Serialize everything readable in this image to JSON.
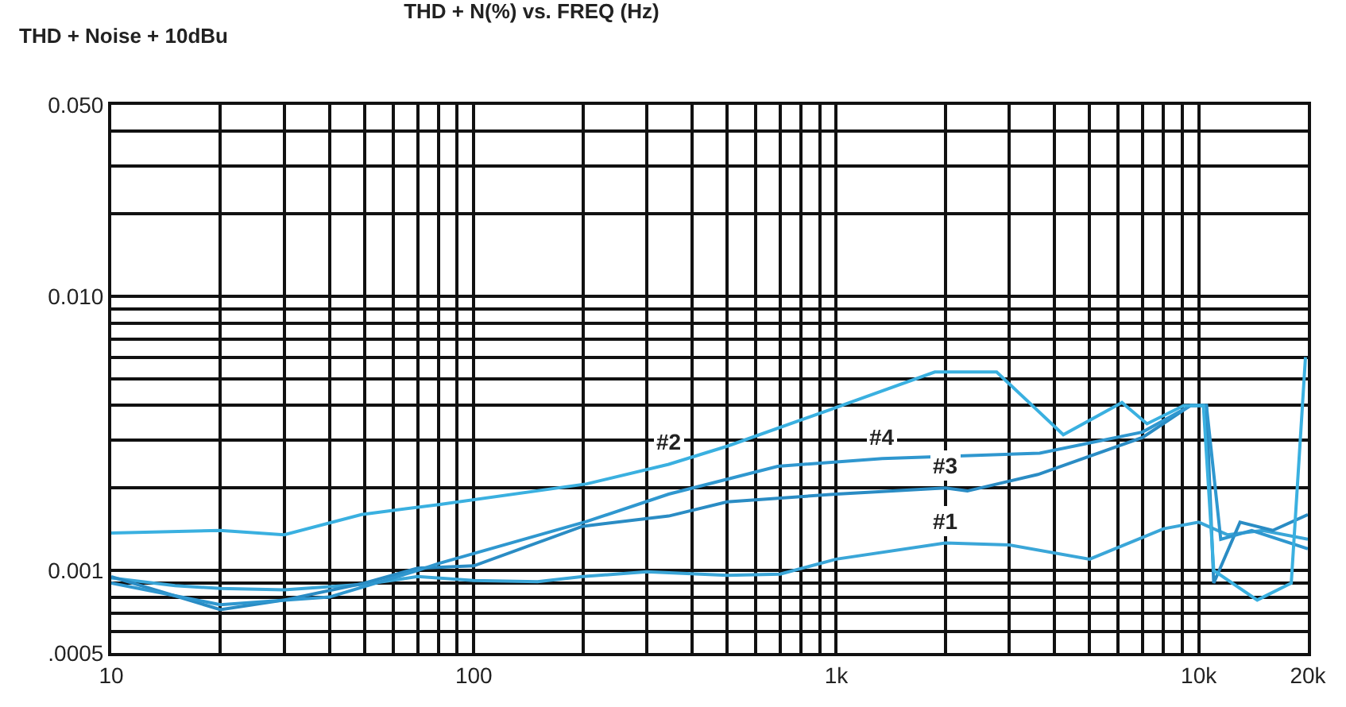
{
  "chart_data": {
    "type": "line",
    "title": "THD + N(%) vs. FREQ (Hz)",
    "subtitle": "THD + Noise + 10dBu",
    "log": "xy",
    "grid": true,
    "line_style": "solid",
    "marker": "none",
    "xlim": [
      10,
      20000
    ],
    "ylim": [
      0.0005,
      0.05
    ],
    "xticks": [
      10,
      {
        "value": 20,
        "label": null
      },
      {
        "value": 30,
        "label": null
      },
      {
        "value": 40,
        "label": null
      },
      {
        "value": 50,
        "label": null
      },
      {
        "value": 60,
        "label": null
      },
      {
        "value": 70,
        "label": null
      },
      {
        "value": 80,
        "label": null
      },
      {
        "value": 90,
        "label": null
      },
      100,
      {
        "value": 200,
        "label": null
      },
      {
        "value": 300,
        "label": null
      },
      {
        "value": 400,
        "label": null
      },
      {
        "value": 500,
        "label": null
      },
      {
        "value": 600,
        "label": null
      },
      {
        "value": 700,
        "label": null
      },
      {
        "value": 800,
        "label": null
      },
      {
        "value": 900,
        "label": null
      },
      {
        "value": 1000,
        "label": "1k"
      },
      {
        "value": 2000,
        "label": null
      },
      {
        "value": 3000,
        "label": null
      },
      {
        "value": 4000,
        "label": null
      },
      {
        "value": 5000,
        "label": null
      },
      {
        "value": 6000,
        "label": null
      },
      {
        "value": 7000,
        "label": null
      },
      {
        "value": 8000,
        "label": null
      },
      {
        "value": 9000,
        "label": null
      },
      {
        "value": 10000,
        "label": "10k"
      },
      {
        "value": 20000,
        "label": "20k"
      }
    ],
    "yticks": [
      {
        "value": 0.0005,
        "label": ".0005"
      },
      {
        "value": 0.0006,
        "label": null
      },
      {
        "value": 0.0007,
        "label": null
      },
      {
        "value": 0.0008,
        "label": null
      },
      {
        "value": 0.0009,
        "label": null
      },
      0.001,
      {
        "value": 0.002,
        "label": null
      },
      {
        "value": 0.003,
        "label": null
      },
      {
        "value": 0.004,
        "label": null
      },
      {
        "value": 0.005,
        "label": null
      },
      {
        "value": 0.006,
        "label": null
      },
      {
        "value": 0.007,
        "label": null
      },
      {
        "value": 0.008,
        "label": null
      },
      {
        "value": 0.009,
        "label": null
      },
      {
        "value": 0.01,
        "label": "0.010"
      },
      {
        "value": 0.02,
        "label": null
      },
      {
        "value": 0.03,
        "label": null
      },
      {
        "value": 0.04,
        "label": null
      },
      {
        "value": 0.05,
        "label": "0.050"
      }
    ],
    "series": [
      {
        "color": "#3aa6d8",
        "x": [
          10,
          15,
          20,
          30,
          50,
          70,
          100,
          150,
          200,
          300,
          500,
          700,
          1000,
          2000,
          3000,
          5000,
          8000,
          10000,
          12000,
          15000,
          20000
        ],
        "values": [
          0.00094,
          0.00088,
          0.00086,
          0.00085,
          0.00089,
          0.00095,
          0.00092,
          0.00091,
          0.00095,
          0.00099,
          0.00096,
          0.00097,
          0.0011,
          0.00126,
          0.00124,
          0.0011,
          0.00142,
          0.0015,
          0.00135,
          0.0014,
          0.0013
        ]
      },
      {
        "color": "#2a8cc4",
        "x": [
          10,
          20,
          30,
          50,
          70,
          100,
          200,
          345,
          500,
          1000,
          2000,
          2300,
          3600,
          7000,
          9500,
          10500,
          11000,
          13000,
          16000,
          20000
        ],
        "values": [
          0.00095,
          0.00072,
          0.00078,
          0.0009,
          0.00102,
          0.00104,
          0.00145,
          0.00158,
          0.00178,
          0.0019,
          0.002,
          0.00195,
          0.00224,
          0.00306,
          0.004,
          0.004,
          0.0009,
          0.0015,
          0.0014,
          0.0016
        ]
      },
      {
        "color": "#2f97cf",
        "x": [
          10,
          20,
          40,
          70,
          80,
          205,
          345,
          690,
          1340,
          3640,
          7000,
          9500,
          10500,
          11500,
          14000,
          20000
        ],
        "values": [
          0.0009,
          0.00075,
          0.0008,
          0.001,
          0.00106,
          0.00151,
          0.0019,
          0.0024,
          0.00256,
          0.00268,
          0.0032,
          0.004,
          0.004,
          0.0013,
          0.0014,
          0.0012
        ]
      },
      {
        "color": "#3ab0e0",
        "x": [
          10,
          20,
          30,
          49,
          80,
          205,
          345,
          500,
          960,
          1870,
          2770,
          4230,
          6140,
          7200,
          9100,
          10300,
          11000,
          14500,
          18000,
          19700
        ],
        "values": [
          0.00137,
          0.0014,
          0.00135,
          0.0016,
          0.00174,
          0.00207,
          0.00244,
          0.00284,
          0.00386,
          0.0053,
          0.0053,
          0.00313,
          0.0041,
          0.00343,
          0.004,
          0.004,
          0.001,
          0.00078,
          0.0009,
          0.006
        ]
      }
    ],
    "annotations": [
      {
        "text": "#2",
        "x": 345,
        "y": 0.00244
      },
      {
        "text": "#4",
        "x": 1340,
        "y": 0.00256
      },
      {
        "text": "#3",
        "x": 2000,
        "y": 0.002
      },
      {
        "text": "#1",
        "x": 2000,
        "y": 0.00126
      }
    ]
  }
}
